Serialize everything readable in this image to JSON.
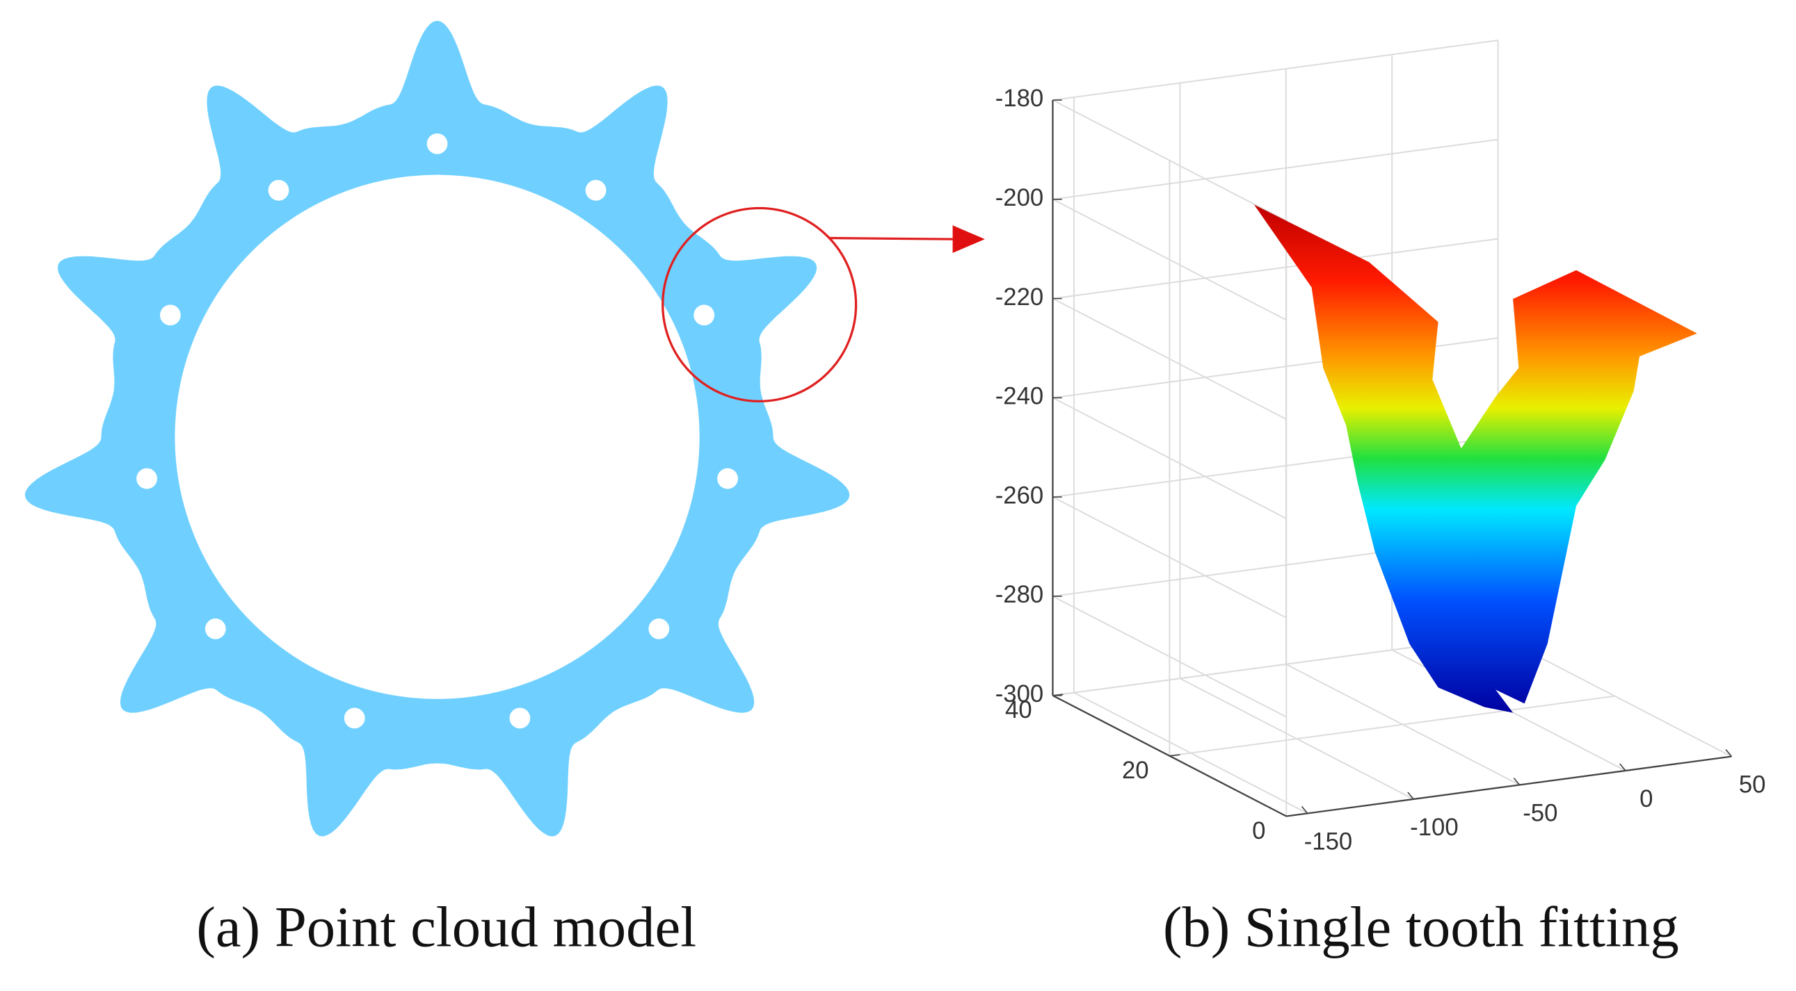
{
  "panels": [
    {
      "caption": "(a) Point cloud model"
    },
    {
      "caption": "(b) Single tooth fitting",
      "xlim": [
        -160,
        50
      ],
      "xticks": [
        -150,
        -100,
        -50,
        0,
        50
      ],
      "ylim": [
        0,
        40
      ],
      "yticks": [
        0,
        20,
        40
      ],
      "zlim": [
        -300,
        -180
      ],
      "zticks": [
        -180,
        -200,
        -220,
        -240,
        -260,
        -280,
        -300
      ],
      "grid": true
    }
  ]
}
